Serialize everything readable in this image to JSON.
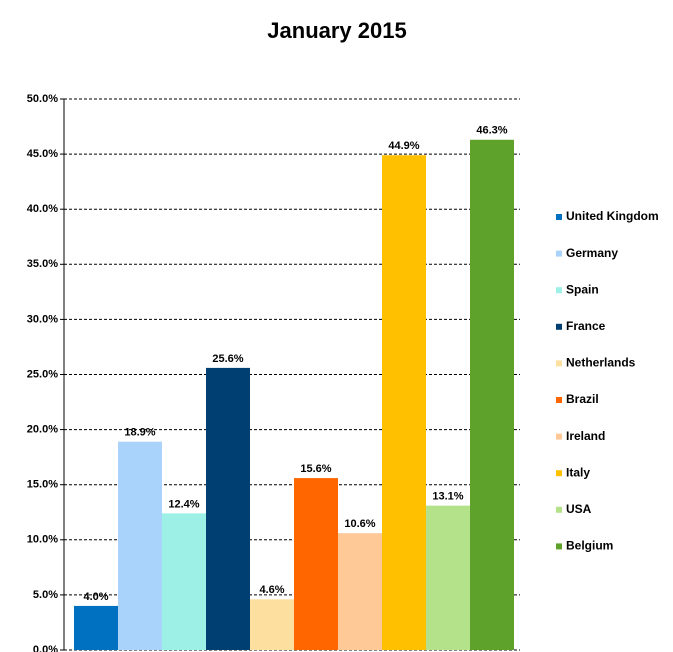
{
  "chart_data": {
    "type": "bar",
    "title": "January 2015",
    "ylim": [
      0,
      50
    ],
    "yticks": [
      {
        "value": 0,
        "label": "0.0%"
      },
      {
        "value": 5,
        "label": "5.0%"
      },
      {
        "value": 10,
        "label": "10.0%"
      },
      {
        "value": 15,
        "label": "15.0%"
      },
      {
        "value": 20,
        "label": "20.0%"
      },
      {
        "value": 25,
        "label": "25.0%"
      },
      {
        "value": 30,
        "label": "30.0%"
      },
      {
        "value": 35,
        "label": "35.0%"
      },
      {
        "value": 40,
        "label": "40.0%"
      },
      {
        "value": 45,
        "label": "45.0%"
      },
      {
        "value": 50,
        "label": "50.0%"
      }
    ],
    "grid": true,
    "legend": "right",
    "series": [
      {
        "name": "United Kingdom",
        "color": "#0070c0",
        "values": [
          4.0
        ],
        "value_labels": [
          "4.0%"
        ]
      },
      {
        "name": "Germany",
        "color": "#a9d3fb",
        "values": [
          18.9
        ],
        "value_labels": [
          "18.9%"
        ]
      },
      {
        "name": "Spain",
        "color": "#9df0e6",
        "values": [
          12.4
        ],
        "value_labels": [
          "12.4%"
        ]
      },
      {
        "name": "France",
        "color": "#003f72",
        "values": [
          25.6
        ],
        "value_labels": [
          "25.6%"
        ]
      },
      {
        "name": "Netherlands",
        "color": "#fde0a0",
        "values": [
          4.6
        ],
        "value_labels": [
          "4.6%"
        ]
      },
      {
        "name": "Brazil",
        "color": "#ff6600",
        "values": [
          15.6
        ],
        "value_labels": [
          "15.6%"
        ]
      },
      {
        "name": "Ireland",
        "color": "#ffc997",
        "values": [
          10.6
        ],
        "value_labels": [
          "10.6%"
        ]
      },
      {
        "name": "Italy",
        "color": "#ffc000",
        "values": [
          44.9
        ],
        "value_labels": [
          "44.9%"
        ]
      },
      {
        "name": "USA",
        "color": "#b3e28a",
        "values": [
          13.1
        ],
        "value_labels": [
          "13.1%"
        ]
      },
      {
        "name": "Belgium",
        "color": "#5ea22b",
        "values": [
          46.3
        ],
        "value_labels": [
          "46.3%"
        ]
      }
    ]
  }
}
